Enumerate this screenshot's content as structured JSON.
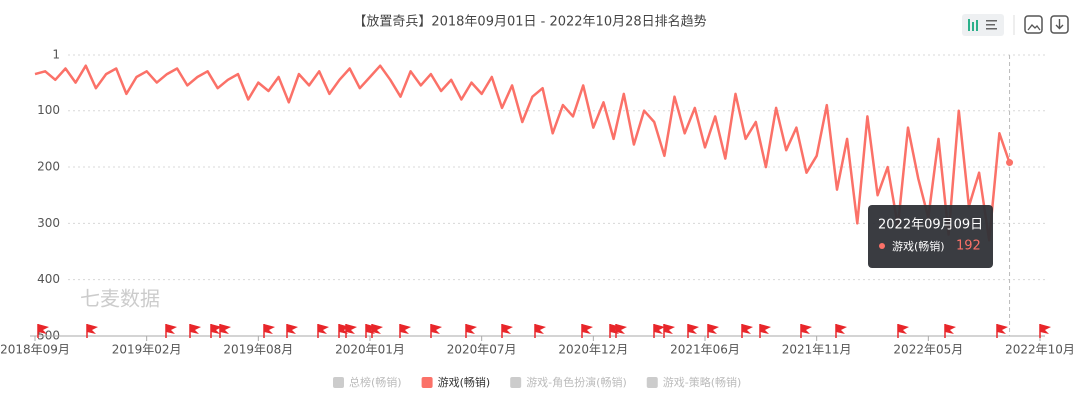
{
  "chart_data": {
    "type": "line",
    "title": "【放置奇兵】2018年09月01日 - 2022年10月28日排名趋势",
    "watermark": "七麦数据",
    "categories": [
      "2018年09月",
      null,
      null,
      null,
      null,
      null,
      null,
      null,
      null,
      null,
      null,
      "2019年02月",
      null,
      null,
      null,
      null,
      null,
      null,
      null,
      null,
      null,
      null,
      "2019年08月",
      null,
      null,
      null,
      null,
      null,
      null,
      null,
      null,
      null,
      null,
      "2020年01月",
      null,
      null,
      null,
      null,
      null,
      null,
      null,
      null,
      null,
      null,
      "2020年07月",
      null,
      null,
      null,
      null,
      null,
      null,
      null,
      null,
      null,
      null,
      "2020年12月",
      null,
      null,
      null,
      null,
      null,
      null,
      null,
      null,
      null,
      null,
      "2021年06月",
      null,
      null,
      null,
      null,
      null,
      null,
      null,
      null,
      null,
      null,
      "2021年11月",
      null,
      null,
      null,
      null,
      null,
      null,
      null,
      null,
      null,
      null,
      "2022年05月",
      null,
      null,
      null,
      null,
      null,
      null,
      null,
      null,
      null,
      null,
      "2022年10月"
    ],
    "series": [
      {
        "name": "游戏(畅销)",
        "color": "#fb7168",
        "values": [
          35,
          30,
          45,
          25,
          50,
          20,
          60,
          35,
          25,
          70,
          40,
          30,
          50,
          35,
          25,
          55,
          40,
          30,
          60,
          45,
          35,
          80,
          50,
          65,
          40,
          85,
          35,
          55,
          30,
          70,
          45,
          25,
          60,
          40,
          20,
          45,
          75,
          30,
          55,
          35,
          65,
          45,
          80,
          50,
          70,
          40,
          95,
          55,
          120,
          75,
          60,
          140,
          90,
          110,
          55,
          130,
          85,
          150,
          70,
          160,
          100,
          120,
          180,
          75,
          140,
          95,
          165,
          110,
          185,
          70,
          150,
          120,
          200,
          95,
          170,
          130,
          210,
          180,
          90,
          240,
          150,
          300,
          110,
          250,
          200,
          305,
          130,
          220,
          290,
          150,
          320,
          100,
          270,
          210,
          330,
          140,
          192,
          null,
          null,
          null
        ]
      }
    ],
    "legend": [
      {
        "name": "总榜(畅销)",
        "color": "#cccccc",
        "active": false
      },
      {
        "name": "游戏(畅销)",
        "color": "#fb7168",
        "active": true
      },
      {
        "name": "游戏-角色扮演(畅销)",
        "color": "#cccccc",
        "active": false
      },
      {
        "name": "游戏-策略(畅销)",
        "color": "#cccccc",
        "active": false
      }
    ],
    "ylim": [
      1,
      500
    ],
    "yticks": [
      1,
      100,
      200,
      300,
      400,
      500
    ],
    "inverted": true,
    "grid": true,
    "tooltip": {
      "date": "2022年09月09日",
      "series": "游戏(畅销)",
      "value": 192
    }
  }
}
